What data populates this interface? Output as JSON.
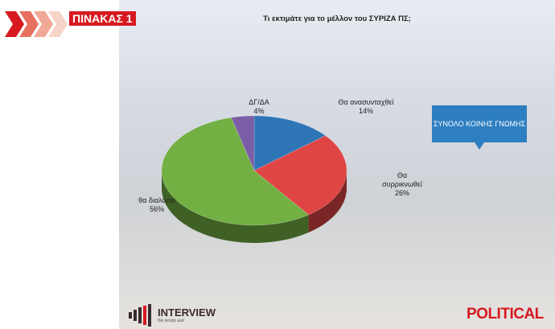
{
  "header": {
    "tag": "ΠΙΝΑΚΑΣ 1"
  },
  "chart_data": {
    "type": "pie",
    "title": "Τι εκτιμάτε για το μέλλον του ΣΥΡΙΖΑ ΠΣ;",
    "categories": [
      "Θα ανασυνταχθεί",
      "Θα συρρικνωθεί",
      "θα διαλύσει",
      "ΔΓ/ΔΑ"
    ],
    "values": [
      14,
      26,
      56,
      4
    ],
    "value_labels": [
      "14%",
      "26%",
      "56%",
      "4%"
    ],
    "colors": [
      "#2e75b6",
      "#e04545",
      "#72b043",
      "#7b5ea6"
    ],
    "annotation": "ΣΥΝΟΛΟ ΚΟΙΝΗΣ ΓΝΩΜΗΣ"
  },
  "footer": {
    "logo": "INTERVIEW",
    "tagline": "We simply ask!",
    "brand": "POLITICAL"
  }
}
